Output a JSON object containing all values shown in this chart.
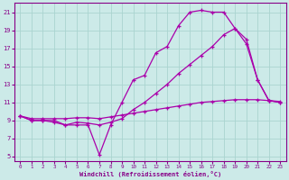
{
  "xlabel": "Windchill (Refroidissement éolien,°C)",
  "background_color": "#cceae8",
  "grid_color": "#aad4d0",
  "line_color": "#aa00aa",
  "xlim": [
    -0.5,
    23.5
  ],
  "ylim": [
    4.5,
    22
  ],
  "xticks": [
    0,
    1,
    2,
    3,
    4,
    5,
    6,
    7,
    8,
    9,
    10,
    11,
    12,
    13,
    14,
    15,
    16,
    17,
    18,
    19,
    20,
    21,
    22,
    23
  ],
  "yticks": [
    5,
    7,
    9,
    11,
    13,
    15,
    17,
    19,
    21
  ],
  "curve1_x": [
    0,
    1,
    2,
    3,
    4,
    5,
    6,
    7,
    8,
    9,
    10,
    11,
    12,
    13,
    14,
    15,
    16,
    17,
    18,
    19,
    20,
    21,
    22,
    23
  ],
  "curve1_y": [
    9.5,
    9.0,
    9.0,
    9.0,
    8.5,
    8.5,
    8.5,
    5.2,
    8.5,
    11.0,
    13.5,
    14.0,
    16.5,
    17.2,
    19.5,
    21.0,
    21.2,
    21.0,
    21.0,
    19.2,
    17.5,
    13.5,
    11.2,
    11.0
  ],
  "curve2_x": [
    0,
    1,
    2,
    3,
    4,
    5,
    6,
    7,
    8,
    9,
    10,
    11,
    12,
    13,
    14,
    15,
    16,
    17,
    18,
    19,
    20,
    21,
    22,
    23
  ],
  "curve2_y": [
    9.5,
    9.0,
    9.0,
    8.8,
    8.5,
    8.8,
    8.7,
    8.5,
    8.8,
    9.2,
    10.2,
    11.0,
    12.0,
    13.0,
    14.2,
    15.2,
    16.2,
    17.2,
    18.5,
    19.2,
    18.0,
    13.5,
    11.2,
    11.0
  ],
  "curve3_x": [
    0,
    1,
    2,
    3,
    4,
    5,
    6,
    7,
    8,
    9,
    10,
    11,
    12,
    13,
    14,
    15,
    16,
    17,
    18,
    19,
    20,
    21,
    22,
    23
  ],
  "curve3_y": [
    9.5,
    9.2,
    9.2,
    9.2,
    9.2,
    9.3,
    9.3,
    9.2,
    9.4,
    9.6,
    9.8,
    10.0,
    10.2,
    10.4,
    10.6,
    10.8,
    11.0,
    11.1,
    11.2,
    11.3,
    11.3,
    11.3,
    11.2,
    11.1
  ]
}
